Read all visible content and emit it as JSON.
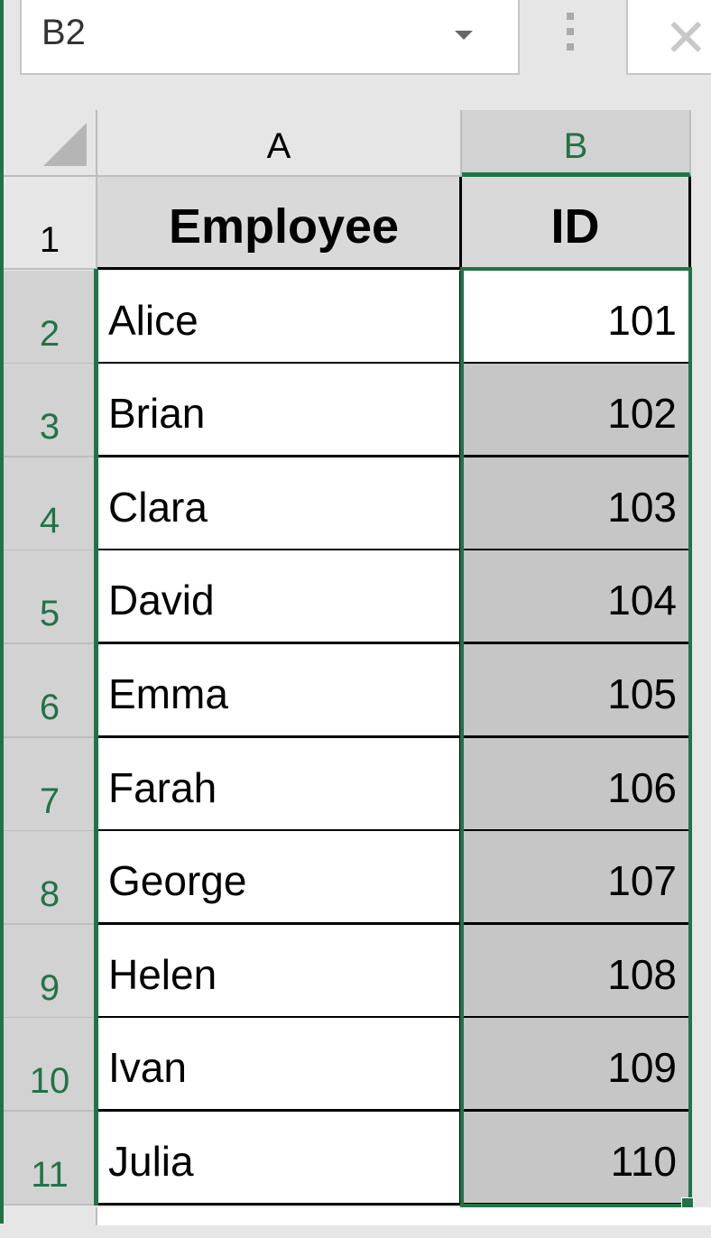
{
  "name_box": {
    "value": "B2"
  },
  "columns": [
    "A",
    "B"
  ],
  "selected_column": "B",
  "header_row": {
    "row": "1",
    "cells": [
      "Employee",
      "ID"
    ]
  },
  "rows": [
    {
      "row": "2",
      "employee": "Alice",
      "id": "101"
    },
    {
      "row": "3",
      "employee": "Brian",
      "id": "102"
    },
    {
      "row": "4",
      "employee": "Clara",
      "id": "103"
    },
    {
      "row": "5",
      "employee": "David",
      "id": "104"
    },
    {
      "row": "6",
      "employee": "Emma",
      "id": "105"
    },
    {
      "row": "7",
      "employee": "Farah",
      "id": "106"
    },
    {
      "row": "8",
      "employee": "George",
      "id": "107"
    },
    {
      "row": "9",
      "employee": "Helen",
      "id": "108"
    },
    {
      "row": "10",
      "employee": "Ivan",
      "id": "109"
    },
    {
      "row": "11",
      "employee": "Julia",
      "id": "110"
    }
  ],
  "selection": "B2:B11",
  "colors": {
    "accent": "#217346",
    "selected_fill": "#c6c6c6",
    "header_bg": "#e6e6e6"
  },
  "icons": {
    "name_box_dropdown": "chevron-down-icon",
    "formula_bar_cancel": "close-icon",
    "select_all": "select-all-triangle-icon"
  }
}
